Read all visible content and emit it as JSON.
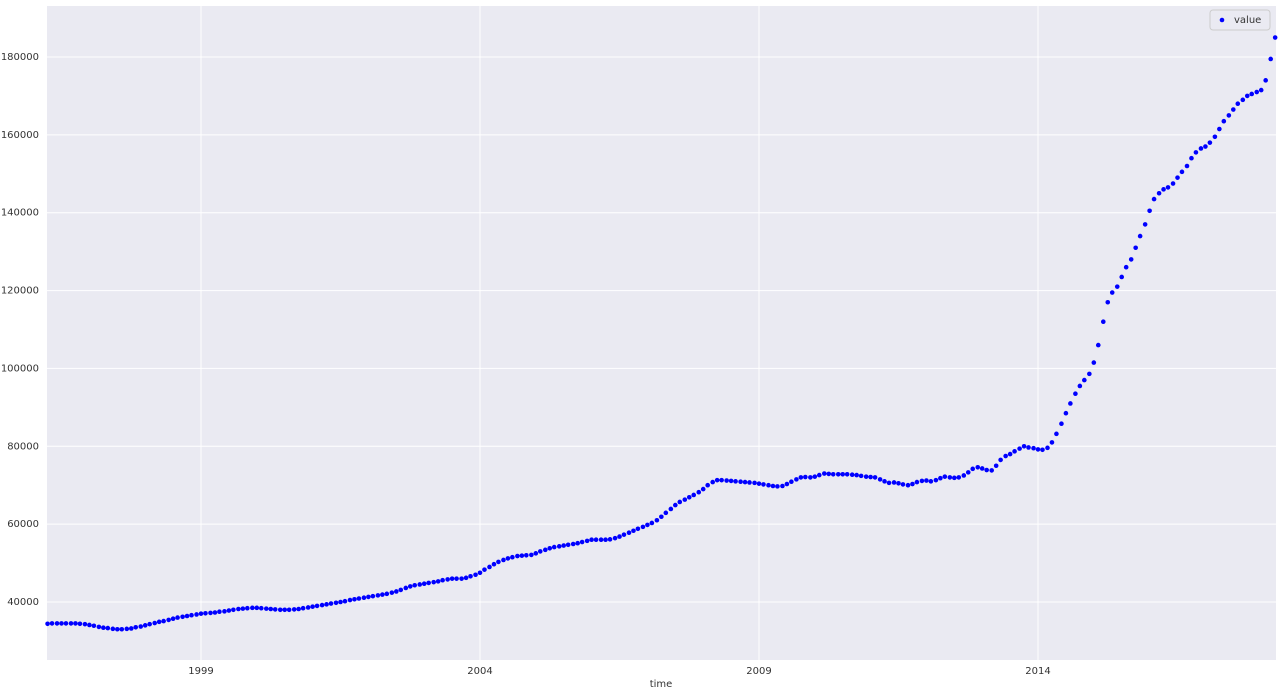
{
  "chart_data": {
    "type": "scatter",
    "xlabel": "time",
    "legend": "upper right",
    "grid": true,
    "xlim": [
      1996.24,
      2018.265
    ],
    "xticks": [
      1999,
      2004,
      2009,
      2014
    ],
    "ylim": [
      25100,
      193100
    ],
    "yticks": [
      40000,
      60000,
      80000,
      100000,
      120000,
      140000,
      160000,
      180000
    ],
    "x": [
      1996.25,
      1996.33,
      1996.42,
      1996.5,
      1996.58,
      1996.67,
      1996.75,
      1996.83,
      1996.92,
      1997,
      1997.08,
      1997.17,
      1997.25,
      1997.33,
      1997.42,
      1997.5,
      1997.58,
      1997.67,
      1997.75,
      1997.83,
      1997.92,
      1998,
      1998.08,
      1998.17,
      1998.25,
      1998.33,
      1998.42,
      1998.5,
      1998.58,
      1998.67,
      1998.75,
      1998.83,
      1998.92,
      1999,
      1999.08,
      1999.17,
      1999.25,
      1999.33,
      1999.42,
      1999.5,
      1999.58,
      1999.67,
      1999.75,
      1999.83,
      1999.92,
      2000,
      2000.08,
      2000.17,
      2000.25,
      2000.33,
      2000.42,
      2000.5,
      2000.58,
      2000.67,
      2000.75,
      2000.83,
      2000.92,
      2001,
      2001.08,
      2001.17,
      2001.25,
      2001.33,
      2001.42,
      2001.5,
      2001.58,
      2001.67,
      2001.75,
      2001.83,
      2001.92,
      2002,
      2002.08,
      2002.17,
      2002.25,
      2002.33,
      2002.42,
      2002.5,
      2002.58,
      2002.67,
      2002.75,
      2002.83,
      2002.92,
      2003,
      2003.08,
      2003.17,
      2003.25,
      2003.33,
      2003.42,
      2003.5,
      2003.58,
      2003.67,
      2003.75,
      2003.83,
      2003.92,
      2004,
      2004.08,
      2004.17,
      2004.25,
      2004.33,
      2004.42,
      2004.5,
      2004.58,
      2004.67,
      2004.75,
      2004.83,
      2004.92,
      2005,
      2005.08,
      2005.17,
      2005.25,
      2005.33,
      2005.42,
      2005.5,
      2005.58,
      2005.67,
      2005.75,
      2005.83,
      2005.92,
      2006,
      2006.08,
      2006.17,
      2006.25,
      2006.33,
      2006.42,
      2006.5,
      2006.58,
      2006.67,
      2006.75,
      2006.83,
      2006.92,
      2007,
      2007.08,
      2007.17,
      2007.25,
      2007.33,
      2007.42,
      2007.5,
      2007.58,
      2007.67,
      2007.75,
      2007.83,
      2007.92,
      2008,
      2008.08,
      2008.17,
      2008.25,
      2008.33,
      2008.42,
      2008.5,
      2008.58,
      2008.67,
      2008.75,
      2008.83,
      2008.92,
      2009,
      2009.08,
      2009.17,
      2009.25,
      2009.33,
      2009.42,
      2009.5,
      2009.58,
      2009.67,
      2009.75,
      2009.83,
      2009.92,
      2010,
      2010.08,
      2010.17,
      2010.25,
      2010.33,
      2010.42,
      2010.5,
      2010.58,
      2010.67,
      2010.75,
      2010.83,
      2010.92,
      2011,
      2011.08,
      2011.17,
      2011.25,
      2011.33,
      2011.42,
      2011.5,
      2011.58,
      2011.67,
      2011.75,
      2011.83,
      2011.92,
      2012,
      2012.08,
      2012.17,
      2012.25,
      2012.33,
      2012.42,
      2012.5,
      2012.58,
      2012.67,
      2012.75,
      2012.83,
      2012.92,
      2013,
      2013.08,
      2013.17,
      2013.25,
      2013.33,
      2013.42,
      2013.5,
      2013.58,
      2013.67,
      2013.75,
      2013.83,
      2013.92,
      2014,
      2014.08,
      2014.17,
      2014.25,
      2014.33,
      2014.42,
      2014.5,
      2014.58,
      2014.67,
      2014.75,
      2014.83,
      2014.92,
      2015,
      2015.08,
      2015.17,
      2015.25,
      2015.33,
      2015.42,
      2015.5,
      2015.58,
      2015.67,
      2015.75,
      2015.83,
      2015.92,
      2016,
      2016.08,
      2016.17,
      2016.25,
      2016.33,
      2016.42,
      2016.5,
      2016.58,
      2016.67,
      2016.75,
      2016.83,
      2016.92,
      2017,
      2017.08,
      2017.17,
      2017.25,
      2017.33,
      2017.42,
      2017.5,
      2017.58,
      2017.67,
      2017.75,
      2017.83,
      2017.92,
      2018,
      2018.08,
      2018.17,
      2018.25
    ],
    "series": [
      {
        "name": "value",
        "color": "#0000ff",
        "values": [
          34400,
          34500,
          34500,
          34500,
          34500,
          34500,
          34500,
          34400,
          34300,
          34100,
          33900,
          33600,
          33400,
          33300,
          33100,
          33000,
          33000,
          33100,
          33200,
          33500,
          33700,
          34000,
          34300,
          34600,
          34900,
          35100,
          35400,
          35700,
          36000,
          36200,
          36400,
          36600,
          36800,
          37000,
          37100,
          37200,
          37300,
          37500,
          37600,
          37800,
          38000,
          38200,
          38300,
          38400,
          38500,
          38500,
          38400,
          38300,
          38200,
          38100,
          38000,
          38000,
          38000,
          38100,
          38200,
          38400,
          38600,
          38800,
          39000,
          39200,
          39400,
          39600,
          39800,
          40000,
          40200,
          40500,
          40700,
          40900,
          41100,
          41300,
          41500,
          41700,
          41900,
          42100,
          42400,
          42700,
          43100,
          43600,
          44000,
          44300,
          44500,
          44700,
          44900,
          45100,
          45300,
          45600,
          45800,
          46000,
          46000,
          46000,
          46200,
          46600,
          47000,
          47500,
          48300,
          49000,
          49700,
          50300,
          50800,
          51200,
          51500,
          51800,
          51900,
          52000,
          52100,
          52500,
          53000,
          53400,
          53800,
          54100,
          54300,
          54500,
          54700,
          54900,
          55100,
          55400,
          55700,
          56000,
          56000,
          56000,
          56000,
          56100,
          56400,
          56800,
          57300,
          57800,
          58300,
          58800,
          59300,
          59800,
          60300,
          61000,
          61900,
          62900,
          63900,
          64900,
          65700,
          66300,
          66900,
          67500,
          68200,
          69000,
          70000,
          70800,
          71300,
          71300,
          71200,
          71100,
          71000,
          70900,
          70800,
          70700,
          70600,
          70400,
          70200,
          70000,
          69800,
          69700,
          69800,
          70300,
          70900,
          71500,
          72000,
          72100,
          72000,
          72200,
          72600,
          73000,
          72900,
          72800,
          72800,
          72800,
          72800,
          72700,
          72600,
          72400,
          72200,
          72100,
          72000,
          71500,
          71000,
          70600,
          70700,
          70500,
          70200,
          70000,
          70300,
          70800,
          71100,
          71200,
          71000,
          71300,
          71800,
          72200,
          72000,
          71900,
          72000,
          72500,
          73300,
          74200,
          74600,
          74300,
          73900,
          73800,
          75000,
          76500,
          77500,
          78000,
          78700,
          79400,
          80000,
          79700,
          79500,
          79200,
          79100,
          79600,
          81000,
          83200,
          85800,
          88500,
          91000,
          93500,
          95500,
          97000,
          98600,
          101500,
          106000,
          112000,
          117000,
          119500,
          121000,
          123500,
          126000,
          128000,
          131000,
          134000,
          137000,
          140500,
          143500,
          145000,
          146000,
          146500,
          147500,
          149000,
          150500,
          152000,
          154000,
          155500,
          156500,
          157000,
          158000,
          159500,
          161500,
          163500,
          165000,
          166500,
          168000,
          169000,
          170000,
          170500,
          171000,
          171500,
          174000,
          179500,
          185000
        ]
      }
    ]
  }
}
